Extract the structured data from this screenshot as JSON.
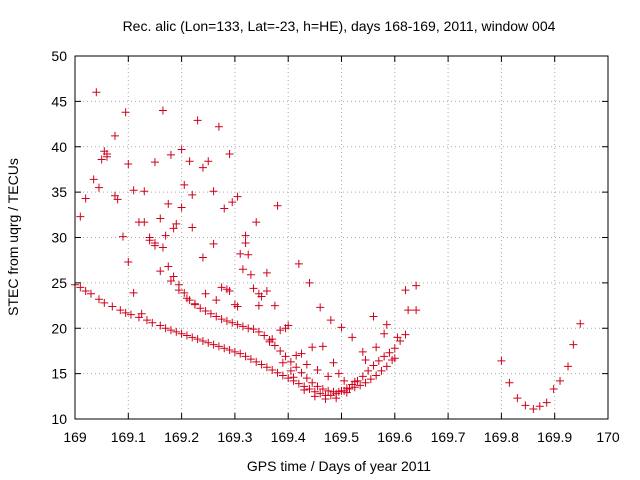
{
  "chart_data": {
    "type": "scatter",
    "title": "Rec. alic (Lon=133, Lat=-23, h=HE), days 168-169, 2011, window 004",
    "xlabel": "GPS time / Days of year 2011",
    "ylabel": "STEC from uqrg / TECUs",
    "xlim": [
      169,
      170
    ],
    "ylim": [
      10,
      50
    ],
    "xticks": [
      "169",
      "169.1",
      "169.2",
      "169.3",
      "169.4",
      "169.5",
      "169.6",
      "169.7",
      "169.8",
      "169.9",
      "170"
    ],
    "yticks": [
      "10",
      "15",
      "20",
      "25",
      "30",
      "35",
      "40",
      "45",
      "50"
    ],
    "grid": true,
    "legend": "none",
    "marker": "plus",
    "marker_color": "#d0021b",
    "series": [
      {
        "x": [
          169.0,
          169.01,
          169.02,
          169.03,
          169.045,
          169.055,
          169.07,
          169.085,
          169.095,
          169.105,
          169.12,
          169.135,
          169.145,
          169.16,
          169.17,
          169.18,
          169.19,
          169.2,
          169.21,
          169.22,
          169.23,
          169.24,
          169.25,
          169.26,
          169.27,
          169.28,
          169.29,
          169.3,
          169.31,
          169.32,
          169.33,
          169.34,
          169.35,
          169.36,
          169.37,
          169.38,
          169.39,
          169.4,
          169.41,
          169.42,
          169.43,
          169.44,
          169.45,
          169.46,
          169.47,
          169.48,
          169.49,
          169.5,
          169.51,
          169.52,
          169.53,
          169.54,
          169.55,
          169.56,
          169.57,
          169.58,
          169.59,
          169.6,
          169.61,
          169.62,
          169.01,
          169.02,
          169.035,
          169.05,
          169.06,
          169.075,
          169.09,
          169.1,
          169.11,
          169.125,
          169.14,
          169.15,
          169.165,
          169.175,
          169.185,
          169.195,
          169.205,
          169.215,
          169.225,
          169.235,
          169.245,
          169.255,
          169.265,
          169.275,
          169.285,
          169.295,
          169.305,
          169.315,
          169.325,
          169.335,
          169.345,
          169.355,
          169.365,
          169.375,
          169.385,
          169.395,
          169.405,
          169.415,
          169.425,
          169.435,
          169.445,
          169.455,
          169.465,
          169.475,
          169.485,
          169.495,
          169.505,
          169.515,
          169.525,
          169.535,
          169.545,
          169.555,
          169.565,
          169.575,
          169.585,
          169.595,
          169.04,
          169.055,
          169.075,
          169.095,
          169.11,
          169.13,
          169.15,
          169.165,
          169.18,
          169.2,
          169.215,
          169.23,
          169.25,
          169.27,
          169.29,
          169.305,
          169.32,
          169.34,
          169.36,
          169.38,
          169.4,
          169.42,
          169.44,
          169.46,
          169.48,
          169.5,
          169.52,
          169.54,
          169.56,
          169.58,
          169.6,
          169.62,
          169.64,
          169.045,
          169.06,
          169.08,
          169.1,
          169.12,
          169.14,
          169.16,
          169.175,
          169.19,
          169.205,
          169.22,
          169.24,
          169.26,
          169.28,
          169.295,
          169.31,
          169.325,
          169.345,
          169.365,
          169.385,
          169.405,
          169.425,
          169.445,
          169.465,
          169.485,
          169.505,
          169.525,
          169.545,
          169.565,
          169.585,
          169.605,
          169.625,
          169.64,
          169.13,
          169.15,
          169.17,
          169.185,
          169.2,
          169.22,
          169.24,
          169.26,
          169.275,
          169.29,
          169.305,
          169.32,
          169.335,
          169.35,
          169.37,
          169.39,
          169.41,
          169.43,
          169.45,
          169.47,
          169.49,
          169.51,
          169.8,
          169.815,
          169.83,
          169.845,
          169.86,
          169.872,
          169.885,
          169.898,
          169.91,
          169.925,
          169.935,
          169.948,
          169.16,
          169.18,
          169.195,
          169.21,
          169.225,
          169.245,
          169.265,
          169.285,
          169.3,
          169.315,
          169.33,
          169.345,
          169.36,
          169.375,
          169.395,
          169.415,
          169.435,
          169.455,
          169.475,
          169.495
        ],
        "y": [
          24.8,
          24.5,
          24.1,
          23.8,
          23.2,
          22.8,
          22.4,
          22.0,
          21.7,
          21.5,
          21.2,
          20.9,
          20.6,
          20.3,
          20.0,
          19.8,
          19.6,
          19.4,
          19.2,
          19.0,
          18.8,
          18.6,
          18.4,
          18.2,
          18.0,
          17.8,
          17.6,
          17.4,
          17.2,
          16.9,
          16.6,
          16.3,
          16.0,
          15.7,
          15.4,
          15.1,
          14.8,
          14.5,
          14.2,
          13.9,
          13.6,
          13.3,
          13.0,
          12.8,
          12.6,
          12.6,
          12.8,
          13.1,
          13.4,
          13.8,
          14.2,
          14.7,
          15.3,
          15.9,
          16.4,
          16.9,
          17.3,
          17.8,
          18.6,
          19.3,
          32.3,
          34.3,
          36.4,
          38.6,
          39.2,
          41.2,
          30.1,
          27.3,
          23.9,
          21.6,
          29.7,
          29.4,
          28.9,
          26.8,
          25.7,
          24.8,
          23.9,
          23.1,
          22.6,
          22.2,
          21.9,
          21.6,
          21.3,
          21.0,
          20.8,
          20.6,
          20.4,
          20.2,
          20.0,
          19.9,
          19.6,
          19.2,
          18.7,
          18.1,
          17.5,
          16.9,
          16.3,
          15.7,
          15.1,
          14.5,
          14.0,
          13.6,
          13.3,
          13.1,
          13.0,
          13.0,
          13.1,
          13.3,
          13.5,
          13.7,
          14.0,
          14.4,
          14.8,
          15.3,
          15.8,
          16.5,
          46.0,
          39.5,
          34.6,
          43.8,
          35.2,
          35.1,
          38.3,
          44.0,
          39.1,
          39.7,
          38.4,
          42.9,
          38.4,
          42.2,
          39.2,
          34.5,
          29.4,
          31.7,
          26.1,
          33.5,
          20.3,
          27.1,
          25.0,
          22.3,
          20.9,
          20.1,
          19.0,
          17.4,
          21.3,
          19.4,
          16.7,
          24.2,
          24.7,
          35.5,
          38.9,
          34.2,
          38.1,
          31.7,
          30.0,
          32.1,
          33.7,
          31.5,
          35.8,
          34.7,
          37.7,
          35.1,
          33.2,
          33.9,
          28.2,
          28.1,
          22.5,
          18.5,
          19.8,
          15.3,
          17.2,
          17.9,
          18.0,
          16.2,
          14.2,
          14.1,
          16.5,
          17.9,
          20.4,
          19.0,
          22.0,
          22.0,
          31.7,
          29.1,
          30.2,
          31.0,
          33.3,
          31.1,
          27.8,
          29.3,
          24.5,
          24.1,
          22.4,
          30.2,
          24.4,
          23.5,
          18.8,
          16.2,
          14.6,
          13.2,
          12.5,
          12.2,
          12.3,
          12.9,
          16.4,
          14.0,
          12.3,
          11.5,
          11.1,
          11.4,
          11.8,
          13.3,
          14.2,
          15.8,
          18.2,
          20.5,
          26.3,
          25.2,
          24.2,
          23.3,
          22.7,
          23.8,
          23.1,
          24.3,
          22.6,
          26.5,
          25.9,
          23.8,
          24.1,
          22.5,
          20.0,
          17.0,
          16.0,
          15.4,
          14.7,
          15.0
        ]
      }
    ]
  }
}
